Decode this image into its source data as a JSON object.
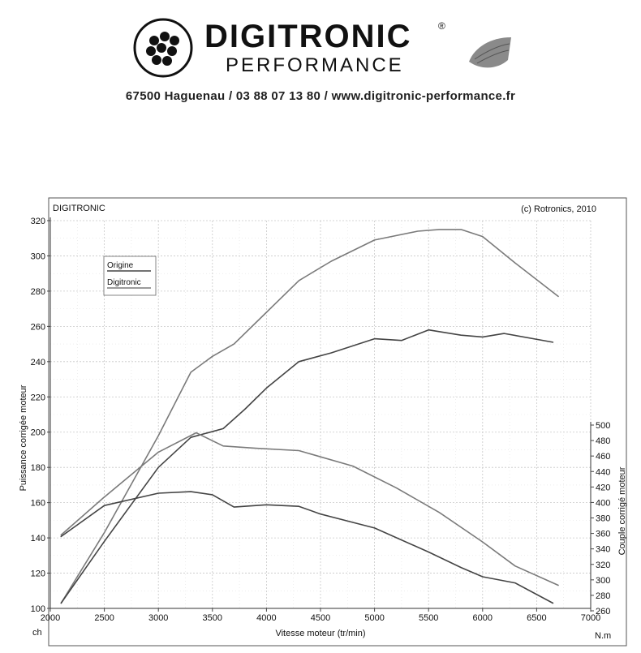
{
  "header": {
    "brand_line1": "DIGITRONIC",
    "brand_line2": "PERFORMANCE",
    "registered_mark": "®",
    "contact": "67500 Haguenau / 03 88 07 13 80 / www.digitronic-performance.fr"
  },
  "chart_data": {
    "type": "line",
    "top_left_label": "DIGITRONIC",
    "top_right_label": "(c) Rotronics, 2010",
    "xlabel": "Vitesse moteur (tr/min)",
    "ylabel_left": "Puissance corrigée moteur",
    "ylabel_right": "Couple corrigé moteur",
    "unit_left": "ch",
    "unit_right": "N.m",
    "xlim": [
      2000,
      7000
    ],
    "ylim_left": [
      100,
      320
    ],
    "ylim_right": [
      260,
      500
    ],
    "x_ticks": [
      2000,
      2500,
      3000,
      3500,
      4000,
      4500,
      5000,
      5500,
      6000,
      6500,
      7000
    ],
    "y_left_ticks": [
      100,
      120,
      140,
      160,
      180,
      200,
      220,
      240,
      260,
      280,
      300,
      320
    ],
    "y_right_ticks": [
      260,
      280,
      300,
      320,
      340,
      360,
      380,
      400,
      420,
      440,
      460,
      480,
      500
    ],
    "grid": true,
    "legend_position": "top-left",
    "legend": [
      "Origine",
      "Digitronic"
    ],
    "series": [
      {
        "name": "Digitronic",
        "axis": "left",
        "color": "#7a7a7a",
        "x": [
          2100,
          2500,
          3000,
          3300,
          3500,
          3700,
          4000,
          4300,
          4600,
          5000,
          5400,
          5600,
          5800,
          6000,
          6300,
          6700
        ],
        "y": [
          103,
          143,
          198,
          234,
          243,
          250,
          268,
          286,
          297,
          309,
          314,
          315,
          315,
          311,
          296,
          277
        ]
      },
      {
        "name": "Origine",
        "axis": "left",
        "color": "#444444",
        "x": [
          2100,
          2500,
          3000,
          3300,
          3600,
          3800,
          4000,
          4300,
          4600,
          5000,
          5250,
          5500,
          5800,
          6000,
          6200,
          6650
        ],
        "y": [
          103,
          138,
          180,
          197,
          202,
          213,
          225,
          240,
          245,
          253,
          252,
          258,
          255,
          254,
          256,
          251
        ]
      },
      {
        "name": "",
        "axis": "right",
        "color": "#7a7a7a",
        "x": [
          2100,
          2500,
          3000,
          3350,
          3600,
          3900,
          4300,
          4800,
          5200,
          5600,
          6000,
          6300,
          6700
        ],
        "y": [
          358,
          407,
          465,
          490,
          473,
          470,
          467,
          447,
          419,
          387,
          349,
          318,
          293
        ]
      },
      {
        "name": "",
        "axis": "right",
        "color": "#444444",
        "x": [
          2100,
          2500,
          3000,
          3300,
          3500,
          3700,
          4000,
          4300,
          4500,
          5000,
          5500,
          5800,
          6000,
          6300,
          6650
        ],
        "y": [
          356,
          396,
          412,
          414,
          410,
          394,
          397,
          395,
          385,
          367,
          336,
          316,
          304,
          296,
          270
        ]
      }
    ]
  }
}
